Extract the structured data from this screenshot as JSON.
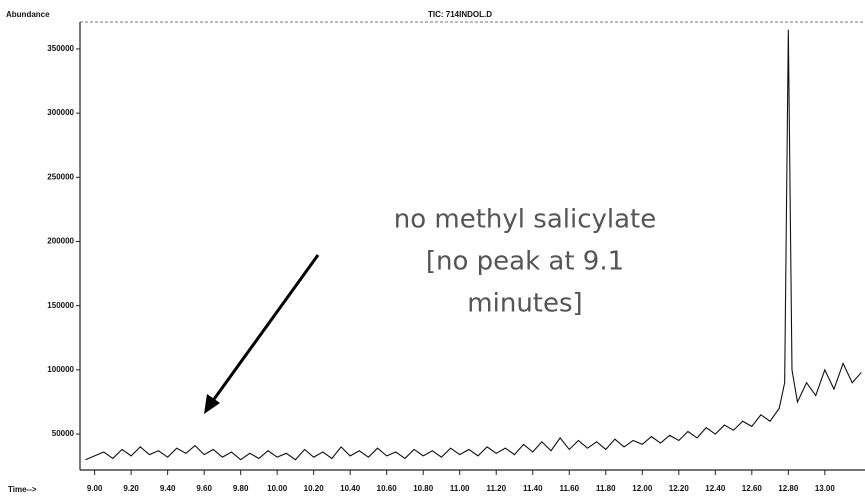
{
  "chart_data": {
    "type": "line",
    "title": "TIC: 714INDOL.D",
    "y_label": "Abundance",
    "x_label": "Time-->",
    "annotation": [
      "no methyl salicylate",
      "[no peak at 9.1",
      "minutes]"
    ],
    "color": "#111111",
    "xlim": [
      8.92,
      13.22
    ],
    "ylim": [
      22000,
      371000
    ],
    "yticks": [
      50000,
      100000,
      150000,
      200000,
      250000,
      300000,
      350000
    ],
    "xticks": [
      {
        "value": 9.0,
        "label": "9.00"
      },
      {
        "value": 9.2,
        "label": "9.20"
      },
      {
        "value": 9.4,
        "label": "9.40"
      },
      {
        "value": 9.6,
        "label": "9.60"
      },
      {
        "value": 9.8,
        "label": "9.80"
      },
      {
        "value": 10.0,
        "label": "10.00"
      },
      {
        "value": 10.2,
        "label": "10.20"
      },
      {
        "value": 10.4,
        "label": "10.40"
      },
      {
        "value": 10.6,
        "label": "10.60"
      },
      {
        "value": 10.8,
        "label": "10.80"
      },
      {
        "value": 11.0,
        "label": "11.00"
      },
      {
        "value": 11.2,
        "label": "11.20"
      },
      {
        "value": 11.4,
        "label": "11.40"
      },
      {
        "value": 11.6,
        "label": "11.60"
      },
      {
        "value": 11.8,
        "label": "11.80"
      },
      {
        "value": 12.0,
        "label": "12.00"
      },
      {
        "value": 12.2,
        "label": "12.20"
      },
      {
        "value": 12.4,
        "label": "12.40"
      },
      {
        "value": 12.6,
        "label": "12.60"
      },
      {
        "value": 12.8,
        "label": "12.80"
      },
      {
        "value": 13.0,
        "label": "13.00"
      }
    ],
    "x": [
      8.95,
      9.0,
      9.05,
      9.1,
      9.15,
      9.2,
      9.25,
      9.3,
      9.35,
      9.4,
      9.45,
      9.5,
      9.55,
      9.6,
      9.65,
      9.7,
      9.75,
      9.8,
      9.85,
      9.9,
      9.95,
      10.0,
      10.05,
      10.1,
      10.15,
      10.2,
      10.25,
      10.3,
      10.35,
      10.4,
      10.45,
      10.5,
      10.55,
      10.6,
      10.65,
      10.7,
      10.75,
      10.8,
      10.85,
      10.9,
      10.95,
      11.0,
      11.05,
      11.1,
      11.15,
      11.2,
      11.25,
      11.3,
      11.35,
      11.4,
      11.45,
      11.5,
      11.55,
      11.6,
      11.65,
      11.7,
      11.75,
      11.8,
      11.85,
      11.9,
      11.95,
      12.0,
      12.05,
      12.1,
      12.15,
      12.2,
      12.25,
      12.3,
      12.35,
      12.4,
      12.45,
      12.5,
      12.55,
      12.6,
      12.65,
      12.7,
      12.75,
      12.78,
      12.8,
      12.82,
      12.85,
      12.9,
      12.95,
      13.0,
      13.05,
      13.1,
      13.15,
      13.2
    ],
    "values": [
      30000,
      33000,
      36000,
      31000,
      38000,
      33000,
      40000,
      34000,
      37000,
      32000,
      39000,
      35000,
      41000,
      34000,
      38000,
      32000,
      36000,
      30000,
      35000,
      31000,
      37000,
      32000,
      35000,
      30000,
      38000,
      32000,
      36000,
      31000,
      40000,
      33000,
      37000,
      32000,
      39000,
      33000,
      36000,
      31000,
      38000,
      33000,
      37000,
      32000,
      39000,
      34000,
      38000,
      33000,
      40000,
      35000,
      39000,
      34000,
      42000,
      36000,
      44000,
      37000,
      47000,
      38000,
      45000,
      39000,
      44000,
      38000,
      46000,
      40000,
      45000,
      42000,
      48000,
      43000,
      49000,
      45000,
      52000,
      47000,
      55000,
      50000,
      57000,
      53000,
      60000,
      56000,
      65000,
      60000,
      70000,
      90000,
      365000,
      100000,
      75000,
      90000,
      80000,
      100000,
      85000,
      105000,
      90000,
      98000
    ]
  }
}
